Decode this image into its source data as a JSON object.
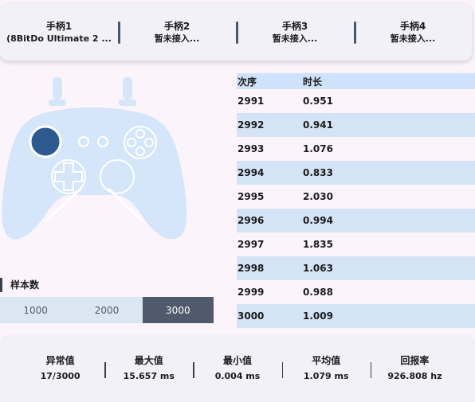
{
  "controllers": [
    {
      "name": "手柄1",
      "status": "(8BitDo Ultimate 2 ..."
    },
    {
      "name": "手柄2",
      "status": "暂未接入..."
    },
    {
      "name": "手柄3",
      "status": "暂未接入..."
    },
    {
      "name": "手柄4",
      "status": "暂未接入..."
    }
  ],
  "table": {
    "headers": [
      "次序",
      "时长"
    ],
    "rows": [
      [
        "2991",
        "0.951"
      ],
      [
        "2992",
        "0.941"
      ],
      [
        "2993",
        "1.076"
      ],
      [
        "2994",
        "0.833"
      ],
      [
        "2995",
        "2.030"
      ],
      [
        "2996",
        "0.994"
      ],
      [
        "2997",
        "1.835"
      ],
      [
        "2998",
        "1.063"
      ],
      [
        "2999",
        "0.988"
      ],
      [
        "3000",
        "1.009"
      ]
    ]
  },
  "samples": {
    "label": "样本数",
    "options": [
      "1000",
      "2000",
      "3000"
    ],
    "selected": "3000"
  },
  "stats": [
    {
      "label": "异常值",
      "value": "17/3000"
    },
    {
      "label": "最大值",
      "value": "15.657 ms"
    },
    {
      "label": "最小值",
      "value": "0.004 ms"
    },
    {
      "label": "平均值",
      "value": "1.079 ms"
    },
    {
      "label": "回报率",
      "value": "926.808 hz"
    }
  ],
  "colors": {
    "pad_body": "#d5e6fb",
    "pad_highlight": "#2e5b8f",
    "selected_segment": "#4f5a6d"
  }
}
